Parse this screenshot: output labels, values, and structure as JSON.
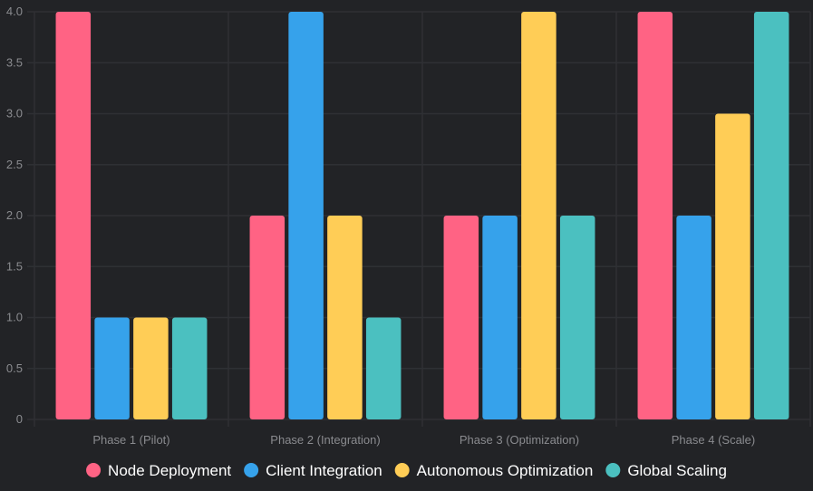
{
  "chart_data": {
    "type": "bar",
    "title": "",
    "xlabel": "",
    "ylabel": "",
    "categories": [
      "Phase 1 (Pilot)",
      "Phase 2 (Integration)",
      "Phase 3 (Optimization)",
      "Phase 4 (Scale)"
    ],
    "series": [
      {
        "name": "Node Deployment",
        "color": "#ff6384",
        "values": [
          4,
          2,
          2,
          4
        ]
      },
      {
        "name": "Client Integration",
        "color": "#36a2eb",
        "values": [
          1,
          4,
          2,
          2
        ]
      },
      {
        "name": "Autonomous Optimization",
        "color": "#ffcd56",
        "values": [
          1,
          2,
          4,
          3
        ]
      },
      {
        "name": "Global Scaling",
        "color": "#4bc0c0",
        "values": [
          1,
          1,
          2,
          4
        ]
      }
    ],
    "ylim": [
      0,
      4
    ],
    "yticks": [
      "0",
      "0.5",
      "1.0",
      "1.5",
      "2.0",
      "2.5",
      "3.0",
      "3.5",
      "4.0"
    ],
    "grid": true,
    "legend_position": "bottom",
    "colors": {
      "background": "#222326",
      "grid": "#2f3034",
      "tick_text": "#8a8b8f",
      "legend_text": "#ffffff"
    }
  }
}
